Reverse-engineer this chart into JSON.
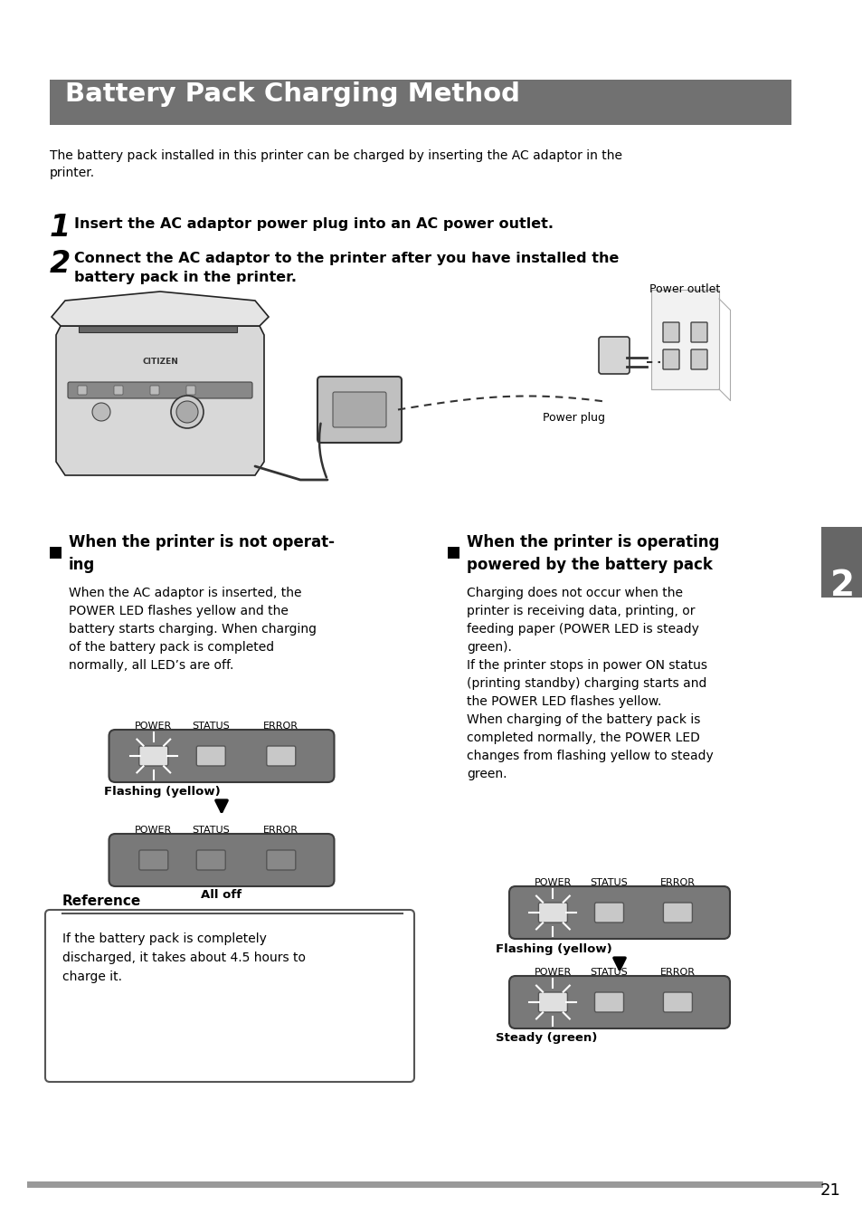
{
  "title": "Battery Pack Charging Method",
  "title_bg": "#717171",
  "title_color": "#ffffff",
  "page_bg": "#ffffff",
  "page_number": "21",
  "body_text": "The battery pack installed in this printer can be charged by inserting the AC adaptor in the\nprinter.",
  "step1": "Insert the AC adaptor power plug into an AC power outlet.",
  "step2": "Connect the AC adaptor to the printer after you have installed the\nbattery pack in the printer.",
  "left_heading_line1": "When the printer is not operat-",
  "left_heading_line2": "ing",
  "left_body1": "When the AC adaptor is inserted, the\nPOWER LED flashes yellow and the\nbattery starts charging. When charging\nof the battery pack is completed\nnormally, all LED’s are off.",
  "left_label1": "Flashing (yellow)",
  "left_label2": "All off",
  "right_heading_line1": "When the printer is operating",
  "right_heading_line2": "powered by the battery pack",
  "right_body1": "Charging does not occur when the\nprinter is receiving data, printing, or\nfeeding paper (POWER LED is steady\ngreen).\nIf the printer stops in power ON status\n(printing standby) charging starts and\nthe POWER LED flashes yellow.\nWhen charging of the battery pack is\ncompleted normally, the POWER LED\nchanges from flashing yellow to steady\ngreen.",
  "right_label1": "Flashing (yellow)",
  "right_label2": "Steady (green)",
  "ref_title": "Reference",
  "ref_body": "If the battery pack is completely\ndischarged, it takes about 4.5 hours to\ncharge it.",
  "power_outlet_label": "Power outlet",
  "power_plug_label": "Power plug"
}
